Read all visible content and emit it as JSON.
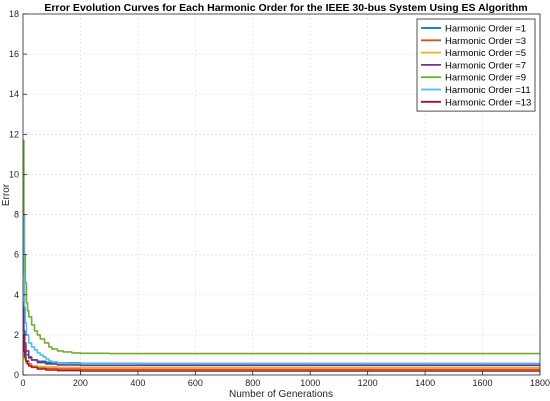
{
  "chart_data": {
    "type": "line",
    "title": "Error Evolution Curves for Each Harmonic Order for the IEEE 30-bus System Using ES Algorithm",
    "xlabel": "Number of Generations",
    "ylabel": "Error",
    "xlim": [
      0,
      1800
    ],
    "ylim": [
      0,
      18
    ],
    "xticks": [
      0,
      200,
      400,
      600,
      800,
      1000,
      1200,
      1400,
      1600,
      1800
    ],
    "yticks": [
      0,
      2,
      4,
      6,
      8,
      10,
      12,
      14,
      16,
      18
    ],
    "grid": true,
    "legend_position": "top-right",
    "series": [
      {
        "name": "Harmonic Order =1",
        "color": "#0072BD",
        "x": [
          1,
          5,
          10,
          20,
          30,
          50,
          80,
          120,
          200,
          400,
          1800
        ],
        "y": [
          2.2,
          1.4,
          1.0,
          0.85,
          0.75,
          0.68,
          0.62,
          0.6,
          0.58,
          0.57,
          0.57
        ]
      },
      {
        "name": "Harmonic Order =3",
        "color": "#D95319",
        "x": [
          1,
          5,
          10,
          20,
          30,
          50,
          80,
          120,
          200,
          1800
        ],
        "y": [
          1.5,
          0.9,
          0.7,
          0.55,
          0.45,
          0.38,
          0.33,
          0.3,
          0.28,
          0.28
        ]
      },
      {
        "name": "Harmonic Order =5",
        "color": "#EDB120",
        "x": [
          1,
          5,
          10,
          20,
          30,
          50,
          80,
          120,
          200,
          1800
        ],
        "y": [
          1.2,
          0.8,
          0.6,
          0.5,
          0.45,
          0.42,
          0.4,
          0.38,
          0.37,
          0.37
        ]
      },
      {
        "name": "Harmonic Order =7",
        "color": "#7E2F8E",
        "x": [
          1,
          3,
          6,
          10,
          20,
          30,
          50,
          80,
          120,
          200,
          1800
        ],
        "y": [
          3.6,
          2.2,
          1.6,
          1.2,
          0.9,
          0.75,
          0.62,
          0.55,
          0.5,
          0.48,
          0.48
        ]
      },
      {
        "name": "Harmonic Order =9",
        "color": "#77AC30",
        "x": [
          1,
          3,
          5,
          8,
          12,
          16,
          20,
          30,
          40,
          50,
          60,
          75,
          90,
          100,
          120,
          140,
          170,
          200,
          300,
          1800
        ],
        "y": [
          11.7,
          8.0,
          6.0,
          4.6,
          3.6,
          3.2,
          2.9,
          2.5,
          2.2,
          2.0,
          1.8,
          1.6,
          1.4,
          1.3,
          1.2,
          1.15,
          1.1,
          1.08,
          1.07,
          1.07
        ]
      },
      {
        "name": "Harmonic Order =11",
        "color": "#4DBEEE",
        "x": [
          1,
          3,
          5,
          8,
          12,
          20,
          30,
          40,
          50,
          60,
          70,
          80,
          90,
          100,
          120,
          150,
          200,
          1800
        ],
        "y": [
          8.0,
          5.0,
          3.4,
          2.6,
          2.0,
          1.6,
          1.4,
          1.25,
          1.1,
          1.0,
          0.9,
          0.8,
          0.7,
          0.65,
          0.6,
          0.58,
          0.57,
          0.57
        ]
      },
      {
        "name": "Harmonic Order =13",
        "color": "#A2142F",
        "x": [
          1,
          3,
          6,
          10,
          15,
          20,
          30,
          50,
          80,
          120,
          200,
          1800
        ],
        "y": [
          2.0,
          1.2,
          0.9,
          0.7,
          0.55,
          0.45,
          0.38,
          0.3,
          0.25,
          0.22,
          0.2,
          0.2
        ]
      }
    ]
  }
}
